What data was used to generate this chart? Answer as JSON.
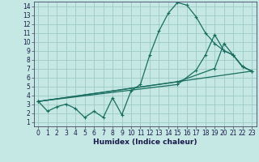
{
  "xlabel": "Humidex (Indice chaleur)",
  "xlim": [
    -0.5,
    23.5
  ],
  "ylim": [
    0.5,
    14.5
  ],
  "xticks": [
    0,
    1,
    2,
    3,
    4,
    5,
    6,
    7,
    8,
    9,
    10,
    11,
    12,
    13,
    14,
    15,
    16,
    17,
    18,
    19,
    20,
    21,
    22,
    23
  ],
  "yticks": [
    1,
    2,
    3,
    4,
    5,
    6,
    7,
    8,
    9,
    10,
    11,
    12,
    13,
    14
  ],
  "background_color": "#c5e8e4",
  "grid_color": "#9dcac4",
  "line_color": "#1a6e60",
  "line1_x": [
    0,
    1,
    2,
    3,
    4,
    5,
    6,
    7,
    8,
    9,
    10,
    11,
    12,
    13,
    14,
    15,
    16,
    17,
    18,
    19,
    20,
    21,
    22,
    23
  ],
  "line1_y": [
    3.3,
    2.2,
    2.7,
    3.0,
    2.5,
    1.5,
    2.2,
    1.5,
    3.7,
    1.8,
    4.5,
    5.2,
    8.5,
    11.2,
    13.2,
    14.4,
    14.1,
    12.8,
    11.0,
    9.8,
    9.0,
    8.5,
    7.2,
    6.7
  ],
  "line2_x": [
    0,
    23
  ],
  "line2_y": [
    3.3,
    6.7
  ],
  "line3_x": [
    0,
    15,
    19,
    20,
    21,
    22,
    23
  ],
  "line3_y": [
    3.3,
    5.5,
    7.0,
    9.8,
    8.5,
    7.2,
    6.7
  ],
  "line4_x": [
    0,
    15,
    17,
    18,
    19,
    20,
    21,
    22,
    23
  ],
  "line4_y": [
    3.3,
    5.2,
    6.8,
    8.5,
    10.8,
    9.0,
    8.5,
    7.2,
    6.7
  ]
}
